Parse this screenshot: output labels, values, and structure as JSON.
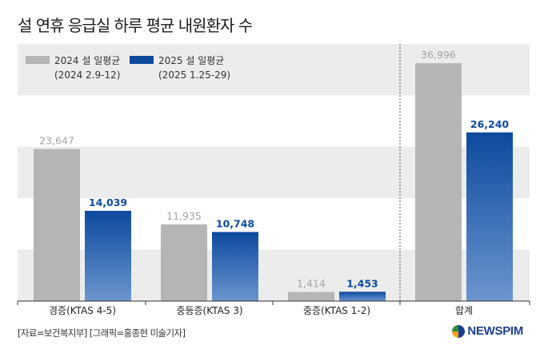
{
  "title": "설 연휴 응급실 하루 평균 내원환자 수",
  "source_note": "[자료=보건복지부] [그래픽=홍종현 미술기자]",
  "brand": {
    "name": "NEWSPIM",
    "icon": "newspim-logo-icon"
  },
  "colors": {
    "series_2024": "#b5b5b5",
    "series_2025_top": "#0d4a9e",
    "series_2025_bottom": "#6c95cf",
    "band": "#ececec"
  },
  "chart_data": {
    "type": "bar",
    "title": "설 연휴 응급실 하루 평균 내원환자 수",
    "xlabel": "",
    "ylabel": "",
    "categories": [
      "경증(KTAS 4-5)",
      "중등증(KTAS 3)",
      "중증(KTAS 1-2)",
      "합계"
    ],
    "series": [
      {
        "name": "2024 설 일평균",
        "period": "(2024 2.9-12)",
        "values": [
          23647,
          11935,
          1414,
          36996
        ],
        "labels": [
          "23,647",
          "11,935",
          "1,414",
          "36,996"
        ]
      },
      {
        "name": "2025 설 일평균",
        "period": "(2025 1.25-29)",
        "values": [
          14039,
          10748,
          1453,
          26240
        ],
        "labels": [
          "14,039",
          "10,748",
          "1,453",
          "26,240"
        ]
      }
    ],
    "ylim": [
      0,
      40000
    ],
    "grid": "alternating horizontal bands",
    "legend": "top-left",
    "separator_before_category": "합계"
  }
}
